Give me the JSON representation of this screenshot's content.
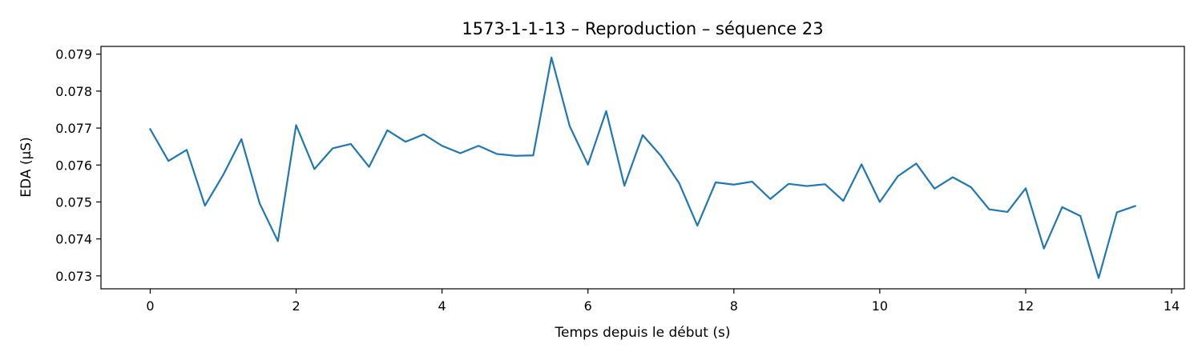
{
  "chart_data": {
    "type": "line",
    "title": "1573-1-1-13 – Reproduction – séquence 23",
    "xlabel": "Temps depuis le début (s)",
    "ylabel": "EDA (µS)",
    "xlim": [
      -0.675,
      14.175
    ],
    "ylim": [
      0.07265,
      0.07921
    ],
    "xticks": [
      0,
      2,
      4,
      6,
      8,
      10,
      12,
      14
    ],
    "yticks": [
      0.073,
      0.074,
      0.075,
      0.076,
      0.077,
      0.078,
      0.079
    ],
    "ytick_labels": [
      "0.073",
      "0.074",
      "0.075",
      "0.076",
      "0.077",
      "0.078",
      "0.079"
    ],
    "grid": false,
    "series": [
      {
        "color": "#1f77b4",
        "x": [
          0,
          0.25,
          0.5,
          0.75,
          1,
          1.25,
          1.5,
          1.75,
          2,
          2.25,
          2.5,
          2.75,
          3,
          3.25,
          3.5,
          3.75,
          4,
          4.25,
          4.5,
          4.75,
          5,
          5.25,
          5.5,
          5.75,
          6,
          6.25,
          6.5,
          6.75,
          7,
          7.25,
          7.5,
          7.75,
          8,
          8.25,
          8.5,
          8.75,
          9,
          9.25,
          9.5,
          9.75,
          10,
          10.25,
          10.5,
          10.75,
          11,
          11.25,
          11.5,
          11.75,
          12,
          12.25,
          12.5,
          12.75,
          13,
          13.25,
          13.5
        ],
        "y": [
          0.07697,
          0.07611,
          0.07641,
          0.0749,
          0.07573,
          0.0767,
          0.07496,
          0.07394,
          0.07708,
          0.07589,
          0.07645,
          0.07657,
          0.07595,
          0.07694,
          0.07663,
          0.07683,
          0.07652,
          0.07632,
          0.07652,
          0.0763,
          0.07625,
          0.07626,
          0.07891,
          0.07705,
          0.07601,
          0.07746,
          0.07544,
          0.07681,
          0.07625,
          0.07551,
          0.07436,
          0.07553,
          0.07547,
          0.07555,
          0.07508,
          0.07549,
          0.07543,
          0.07548,
          0.07503,
          0.07602,
          0.075,
          0.0757,
          0.07604,
          0.07536,
          0.07567,
          0.0754,
          0.0748,
          0.07473,
          0.07537,
          0.07374,
          0.07486,
          0.07462,
          0.07294,
          0.07472,
          0.07489
        ]
      }
    ]
  }
}
